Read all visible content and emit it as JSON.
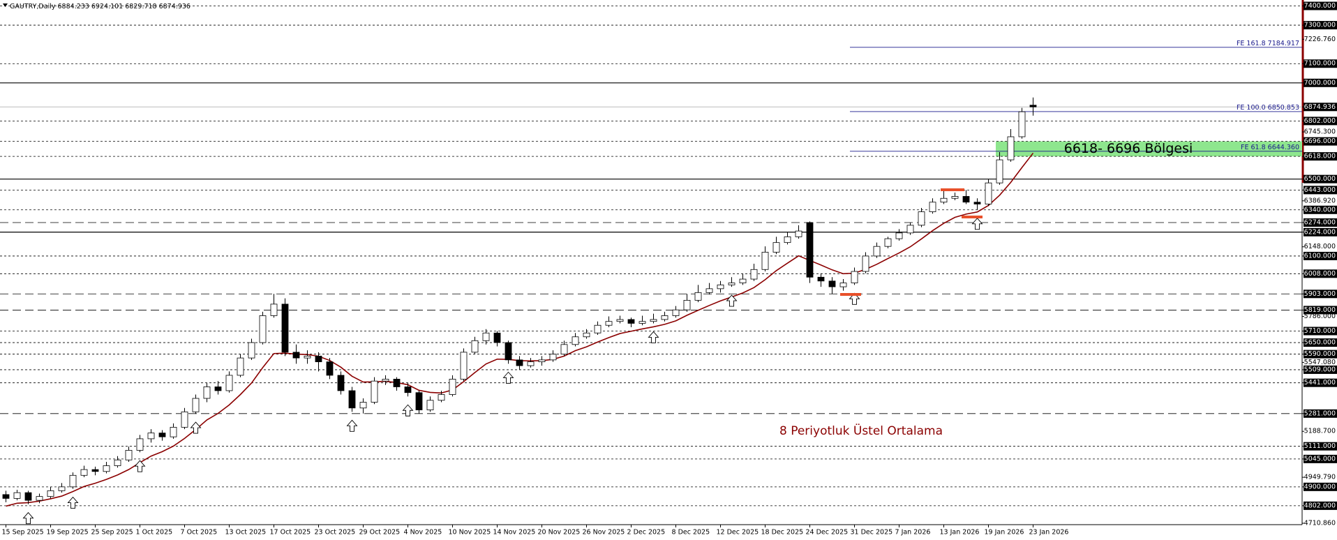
{
  "chart_data": {
    "type": "candlestick",
    "header": {
      "symbol": "GAUTRY,Daily"
    },
    "ylim": [
      4710.86,
      7400
    ],
    "categories": [
      "15 Sep 2025",
      null,
      null,
      null,
      "19 Sep 2025",
      null,
      null,
      null,
      "25 Sep 2025",
      null,
      null,
      null,
      "1 Oct 2025",
      null,
      null,
      null,
      "7 Oct 2025",
      null,
      null,
      null,
      "13 Oct 2025",
      null,
      null,
      null,
      "17 Oct 2025",
      null,
      null,
      null,
      "23 Oct 2025",
      null,
      null,
      null,
      "29 Oct 2025",
      null,
      null,
      null,
      "4 Nov 2025",
      null,
      null,
      null,
      "10 Nov 2025",
      null,
      null,
      null,
      "14 Nov 2025",
      null,
      null,
      null,
      "20 Nov 2025",
      null,
      null,
      null,
      "26 Nov 2025",
      null,
      null,
      null,
      "2 Dec 2025",
      null,
      null,
      null,
      "8 Dec 2025",
      null,
      null,
      null,
      "12 Dec 2025",
      null,
      null,
      null,
      "18 Dec 2025",
      null,
      null,
      null,
      "24 Dec 2025",
      null,
      null,
      null,
      "31 Dec 2025",
      null,
      null,
      null,
      "7 Jan 2026",
      null,
      null,
      null,
      "13 Jan 2026",
      null,
      null,
      null,
      "19 Jan 2026",
      null,
      null,
      null,
      "23 Jan 2026"
    ],
    "ohlc": [
      [
        4860,
        4880,
        4820,
        4840
      ],
      [
        4840,
        4885,
        4830,
        4870
      ],
      [
        4870,
        4880,
        4810,
        4830
      ],
      [
        4830,
        4865,
        4815,
        4850
      ],
      [
        4850,
        4900,
        4840,
        4880
      ],
      [
        4880,
        4920,
        4870,
        4900
      ],
      [
        4900,
        4975,
        4890,
        4960
      ],
      [
        4960,
        5010,
        4950,
        4990
      ],
      [
        4990,
        5005,
        4960,
        4980
      ],
      [
        4980,
        5030,
        4970,
        5010
      ],
      [
        5010,
        5060,
        5000,
        5040
      ],
      [
        5040,
        5110,
        5030,
        5090
      ],
      [
        5090,
        5170,
        5080,
        5150
      ],
      [
        5150,
        5200,
        5130,
        5180
      ],
      [
        5180,
        5195,
        5140,
        5160
      ],
      [
        5160,
        5230,
        5150,
        5210
      ],
      [
        5210,
        5310,
        5200,
        5290
      ],
      [
        5290,
        5380,
        5280,
        5360
      ],
      [
        5360,
        5440,
        5340,
        5420
      ],
      [
        5420,
        5450,
        5380,
        5400
      ],
      [
        5400,
        5500,
        5390,
        5480
      ],
      [
        5480,
        5590,
        5470,
        5570
      ],
      [
        5570,
        5670,
        5560,
        5650
      ],
      [
        5650,
        5810,
        5640,
        5790
      ],
      [
        5790,
        5903,
        5780,
        5850
      ],
      [
        5850,
        5880,
        5580,
        5600
      ],
      [
        5600,
        5640,
        5540,
        5570
      ],
      [
        5570,
        5610,
        5540,
        5580
      ],
      [
        5580,
        5600,
        5500,
        5550
      ],
      [
        5550,
        5570,
        5460,
        5480
      ],
      [
        5480,
        5500,
        5380,
        5400
      ],
      [
        5400,
        5420,
        5290,
        5310
      ],
      [
        5310,
        5360,
        5281,
        5340
      ],
      [
        5340,
        5470,
        5330,
        5450
      ],
      [
        5450,
        5480,
        5430,
        5460
      ],
      [
        5460,
        5470,
        5400,
        5420
      ],
      [
        5420,
        5440,
        5370,
        5390
      ],
      [
        5390,
        5400,
        5281,
        5300
      ],
      [
        5300,
        5370,
        5290,
        5350
      ],
      [
        5350,
        5400,
        5340,
        5380
      ],
      [
        5380,
        5480,
        5370,
        5460
      ],
      [
        5460,
        5620,
        5450,
        5600
      ],
      [
        5600,
        5680,
        5590,
        5660
      ],
      [
        5660,
        5720,
        5640,
        5700
      ],
      [
        5700,
        5710,
        5630,
        5650
      ],
      [
        5650,
        5660,
        5540,
        5560
      ],
      [
        5560,
        5580,
        5509,
        5530
      ],
      [
        5530,
        5570,
        5520,
        5550
      ],
      [
        5550,
        5580,
        5530,
        5560
      ],
      [
        5560,
        5610,
        5550,
        5590
      ],
      [
        5590,
        5660,
        5580,
        5640
      ],
      [
        5640,
        5700,
        5630,
        5680
      ],
      [
        5680,
        5720,
        5670,
        5700
      ],
      [
        5700,
        5760,
        5690,
        5740
      ],
      [
        5740,
        5786,
        5730,
        5760
      ],
      [
        5760,
        5790,
        5750,
        5770
      ],
      [
        5770,
        5780,
        5730,
        5750
      ],
      [
        5750,
        5790,
        5740,
        5760
      ],
      [
        5760,
        5800,
        5750,
        5770
      ],
      [
        5770,
        5810,
        5760,
        5790
      ],
      [
        5790,
        5840,
        5780,
        5820
      ],
      [
        5820,
        5903,
        5810,
        5870
      ],
      [
        5870,
        5950,
        5860,
        5910
      ],
      [
        5910,
        5960,
        5900,
        5930
      ],
      [
        5930,
        5970,
        5910,
        5950
      ],
      [
        5950,
        5990,
        5940,
        5960
      ],
      [
        5960,
        6008,
        5950,
        5980
      ],
      [
        5980,
        6060,
        5970,
        6030
      ],
      [
        6030,
        6150,
        6020,
        6120
      ],
      [
        6120,
        6200,
        6110,
        6170
      ],
      [
        6170,
        6224,
        6160,
        6200
      ],
      [
        6200,
        6260,
        6190,
        6230
      ],
      [
        6274,
        6280,
        5960,
        5990
      ],
      [
        5990,
        6010,
        5940,
        5970
      ],
      [
        5970,
        5990,
        5903,
        5940
      ],
      [
        5940,
        5980,
        5920,
        5960
      ],
      [
        5960,
        6040,
        5950,
        6020
      ],
      [
        6020,
        6120,
        6010,
        6100
      ],
      [
        6100,
        6170,
        6090,
        6150
      ],
      [
        6150,
        6200,
        6140,
        6190
      ],
      [
        6190,
        6240,
        6180,
        6220
      ],
      [
        6220,
        6274,
        6210,
        6260
      ],
      [
        6260,
        6350,
        6250,
        6330
      ],
      [
        6330,
        6400,
        6320,
        6380
      ],
      [
        6380,
        6443,
        6370,
        6400
      ],
      [
        6400,
        6430,
        6390,
        6410
      ],
      [
        6410,
        6443,
        6370,
        6380
      ],
      [
        6380,
        6400,
        6340,
        6370
      ],
      [
        6370,
        6500,
        6360,
        6480
      ],
      [
        6480,
        6640,
        6470,
        6600
      ],
      [
        6600,
        6760,
        6590,
        6720
      ],
      [
        6720,
        6870,
        6710,
        6850
      ],
      [
        6884.233,
        6924.101,
        6829.718,
        6874.936
      ]
    ],
    "ema": {
      "name": "8 Periyotluk Üstel Ortalama",
      "color": "#8b0000",
      "values": [
        4800,
        4815,
        4818,
        4826,
        4838,
        4852,
        4876,
        4902,
        4919,
        4939,
        4962,
        4990,
        5026,
        5060,
        5083,
        5112,
        5152,
        5198,
        5248,
        5282,
        5326,
        5380,
        5440,
        5520,
        5593,
        5595,
        5590,
        5588,
        5579,
        5557,
        5522,
        5475,
        5445,
        5446,
        5449,
        5442,
        5431,
        5402,
        5391,
        5388,
        5404,
        5447,
        5494,
        5539,
        5564,
        5563,
        5556,
        5555,
        5556,
        5563,
        5580,
        5608,
        5628,
        5653,
        5676,
        5697,
        5709,
        5721,
        5732,
        5745,
        5763,
        5792,
        5818,
        5843,
        5867,
        5887,
        5908,
        5936,
        5977,
        6024,
        6063,
        6101,
        6077,
        6053,
        6028,
        6008,
        6011,
        6031,
        6057,
        6087,
        6116,
        6148,
        6189,
        6232,
        6270,
        6301,
        6318,
        6329,
        6363,
        6416,
        6483,
        6560,
        6635
      ]
    },
    "yticks": [
      {
        "value": 7400,
        "label": "7400.000"
      },
      {
        "value": 7300,
        "label": "7300.000"
      },
      {
        "value": 7226.76,
        "label": "7226.760"
      },
      {
        "value": 7100,
        "label": "7100.000"
      },
      {
        "value": 7000,
        "label": "7000.000"
      },
      {
        "value": 6874.936,
        "label": "6874.936"
      },
      {
        "value": 6802,
        "label": "6802.000"
      },
      {
        "value": 6745.3,
        "label": "6745.300"
      },
      {
        "value": 6696,
        "label": "6696.000"
      },
      {
        "value": 6618,
        "label": "6618.000"
      },
      {
        "value": 6500,
        "label": "6500.000"
      },
      {
        "value": 6443,
        "label": "6443.000"
      },
      {
        "value": 6386.92,
        "label": "6386.920"
      },
      {
        "value": 6340,
        "label": "6340.000"
      },
      {
        "value": 6274,
        "label": "6274.000"
      },
      {
        "value": 6224,
        "label": "6224.000"
      },
      {
        "value": 6148,
        "label": "6148.000"
      },
      {
        "value": 6100,
        "label": "6100.000"
      },
      {
        "value": 6008,
        "label": "6008.000"
      },
      {
        "value": 5903,
        "label": "5903.000"
      },
      {
        "value": 5819,
        "label": "5819.000"
      },
      {
        "value": 5786,
        "label": "5786.000"
      },
      {
        "value": 5710,
        "label": "5710.000"
      },
      {
        "value": 5650,
        "label": "5650.000"
      },
      {
        "value": 5590,
        "label": "5590.000"
      },
      {
        "value": 5547.08,
        "label": "5547.080"
      },
      {
        "value": 5509,
        "label": "5509.000"
      },
      {
        "value": 5441,
        "label": "5441.000"
      },
      {
        "value": 5281,
        "label": "5281.000"
      },
      {
        "value": 5188.7,
        "label": "5188.700"
      },
      {
        "value": 5111,
        "label": "5111.000"
      },
      {
        "value": 5045,
        "label": "5045.000"
      },
      {
        "value": 4949.79,
        "label": "4949.790"
      },
      {
        "value": 4900,
        "label": "4900.000"
      },
      {
        "value": 4802,
        "label": "4802.000"
      },
      {
        "value": 4710.86,
        "label": "4710.860"
      }
    ],
    "levels": [
      {
        "value": 7400,
        "style": "dotted"
      },
      {
        "value": 7300,
        "style": "dotted"
      },
      {
        "value": 7100,
        "style": "dotted"
      },
      {
        "value": 7000,
        "style": "solid"
      },
      {
        "value": 6802,
        "style": "dotted"
      },
      {
        "value": 6696,
        "style": "dotted"
      },
      {
        "value": 6618,
        "style": "dotted"
      },
      {
        "value": 6500,
        "style": "solid"
      },
      {
        "value": 6443,
        "style": "dotted"
      },
      {
        "value": 6340,
        "style": "dotted"
      },
      {
        "value": 6274,
        "style": "longdash"
      },
      {
        "value": 6224,
        "style": "solid"
      },
      {
        "value": 6100,
        "style": "dotted"
      },
      {
        "value": 6008,
        "style": "dotted"
      },
      {
        "value": 5903,
        "style": "longdash"
      },
      {
        "value": 5819,
        "style": "longdash"
      },
      {
        "value": 5710,
        "style": "dotted"
      },
      {
        "value": 5650,
        "style": "dotted"
      },
      {
        "value": 5590,
        "style": "dotted"
      },
      {
        "value": 5509,
        "style": "dotted"
      },
      {
        "value": 5441,
        "style": "dotted"
      },
      {
        "value": 5281,
        "style": "longdash"
      },
      {
        "value": 5111,
        "style": "dotted"
      },
      {
        "value": 5045,
        "style": "dotted"
      },
      {
        "value": 4900,
        "style": "dotted"
      },
      {
        "value": 4802,
        "style": "dotted"
      }
    ],
    "fib": [
      {
        "name": "FE 161.8",
        "value": 7184.917,
        "value_label": "7184.917"
      },
      {
        "name": "FE 100.0",
        "value": 6850.853,
        "value_label": "6850.853"
      },
      {
        "name": "FE 61.8",
        "value": 6644.36,
        "value_label": "6644.360"
      }
    ],
    "fib_color": "#1a1a8c",
    "zone": {
      "label": "6618- 6696 Bölgesi",
      "low": 6618,
      "high": 6696,
      "color": "#8ee68e"
    }
  }
}
